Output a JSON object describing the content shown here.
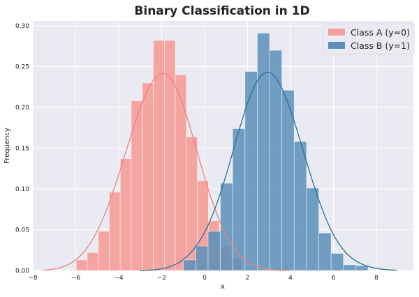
{
  "chart_data": {
    "type": "bar",
    "title": "Binary Classification in 1D",
    "xlabel": "x",
    "ylabel": "Frequency",
    "xlim": [
      -8,
      9.5
    ],
    "ylim": [
      0,
      0.305
    ],
    "xticks": [
      -8,
      -6,
      -4,
      -2,
      0,
      2,
      4,
      6,
      8
    ],
    "yticks": [
      0.0,
      0.05,
      0.1,
      0.15,
      0.2,
      0.25,
      0.3
    ],
    "ytick_labels": [
      "0.00",
      "0.05",
      "0.10",
      "0.15",
      "0.20",
      "0.25",
      "0.30"
    ],
    "grid": true,
    "legend_position": "top-right",
    "series": [
      {
        "name": "Class A (y=0)",
        "bar_color": "#f4a09c",
        "line_color": "#f08080",
        "bin_start": -5.98,
        "bin_width": 0.513,
        "values": [
          0.013,
          0.022,
          0.048,
          0.096,
          0.137,
          0.208,
          0.23,
          0.282,
          0.282,
          0.24,
          0.164,
          0.11,
          0.061,
          0.03,
          0.015
        ]
      },
      {
        "name": "Class B (y=1)",
        "bar_color": "#5b8fb8",
        "line_color": "#2a6f97",
        "bin_start": -0.985,
        "bin_width": 0.573,
        "values": [
          0.013,
          0.03,
          0.048,
          0.107,
          0.174,
          0.244,
          0.291,
          0.27,
          0.221,
          0.158,
          0.101,
          0.046,
          0.021,
          0.007,
          0.006
        ]
      }
    ]
  }
}
